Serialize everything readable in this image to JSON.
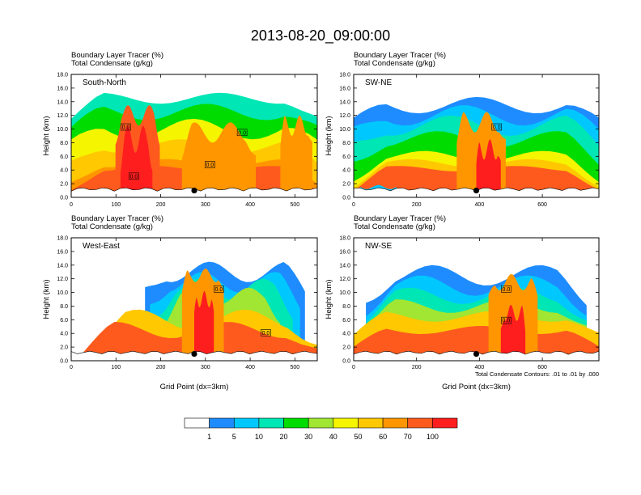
{
  "title": "2013-08-20_09:00:00",
  "footnote": "Total Condensate Contours: .01 to .01 by .000",
  "chart_data": {
    "type": "heatmap",
    "title": "2013-08-20_09:00:00",
    "colorbar": {
      "tick_labels": [
        "1",
        "5",
        "10",
        "20",
        "30",
        "40",
        "50",
        "60",
        "70",
        "100"
      ],
      "colors": [
        "#ffffff",
        "#1e8cff",
        "#00c8ff",
        "#00e6b4",
        "#00dc00",
        "#a0e632",
        "#f5f500",
        "#ffc800",
        "#ff9600",
        "#ff5a1e",
        "#ff1e1e"
      ]
    },
    "panels": [
      {
        "name": "South-North",
        "header_line1": "Boundary Layer Tracer   (%)",
        "header_line2": "Total Condensate   (g/kg)",
        "ylabel": "Height (km)",
        "xlabel": "",
        "y_ticks": [
          "0.0",
          "2.0",
          "4.0",
          "6.0",
          "8.0",
          "10.0",
          "12.0",
          "14.0",
          "16.0",
          "18.0"
        ],
        "x_ticks": [
          "0",
          "100",
          "200",
          "300",
          "400",
          "500"
        ],
        "x_tick_values": [
          0,
          100,
          200,
          300,
          400,
          500
        ],
        "x_range": [
          0,
          550
        ],
        "y_range": [
          0,
          18
        ],
        "marker_x": 275,
        "contour_labels": [
          {
            "text": "0.0",
            "x": 122,
            "y": 10.3
          },
          {
            "text": "0.0",
            "x": 140,
            "y": 3.1
          },
          {
            "text": "0.0",
            "x": 310,
            "y": 4.8
          },
          {
            "text": "0.0",
            "x": 382,
            "y": 9.5
          }
        ]
      },
      {
        "name": "SW-NE",
        "header_line1": "Boundary Layer Tracer   (%)",
        "header_line2": "Total Condensate   (g/kg)",
        "ylabel": "Height (km)",
        "xlabel": "",
        "y_ticks": [
          "0.0",
          "2.0",
          "4.0",
          "6.0",
          "8.0",
          "10.0",
          "12.0",
          "14.0",
          "16.0",
          "18.0"
        ],
        "x_ticks": [
          "0",
          "200",
          "400",
          "600"
        ],
        "x_tick_values": [
          0,
          200,
          400,
          600
        ],
        "x_range": [
          0,
          780
        ],
        "y_range": [
          0,
          18
        ],
        "marker_x": 390,
        "contour_labels": [
          {
            "text": "0.0",
            "x": 455,
            "y": 10.3
          }
        ]
      },
      {
        "name": "West-East",
        "header_line1": "Boundary Layer Tracer   (%)",
        "header_line2": "Total Condensate   (g/kg)",
        "ylabel": "Height (km)",
        "xlabel": "Grid Point (dx=3km)",
        "y_ticks": [
          "0.0",
          "2.0",
          "4.0",
          "6.0",
          "8.0",
          "10.0",
          "12.0",
          "14.0",
          "16.0",
          "18.0"
        ],
        "x_ticks": [
          "0",
          "100",
          "200",
          "300",
          "400",
          "500"
        ],
        "x_tick_values": [
          0,
          100,
          200,
          300,
          400,
          500
        ],
        "x_range": [
          0,
          550
        ],
        "y_range": [
          0,
          18
        ],
        "marker_x": 275,
        "contour_labels": [
          {
            "text": "0.0",
            "x": 330,
            "y": 10.5
          },
          {
            "text": "0.0",
            "x": 435,
            "y": 4.1
          }
        ]
      },
      {
        "name": "NW-SE",
        "header_line1": "Boundary Layer Tracer   (%)",
        "header_line2": "Total Condensate   (g/kg)",
        "ylabel": "Height (km)",
        "xlabel": "Grid Point (dx=3km)",
        "y_ticks": [
          "0.0",
          "2.0",
          "4.0",
          "6.0",
          "8.0",
          "10.0",
          "12.0",
          "14.0",
          "16.0",
          "18.0"
        ],
        "x_ticks": [
          "0",
          "200",
          "400",
          "600"
        ],
        "x_tick_values": [
          0,
          200,
          400,
          600
        ],
        "x_range": [
          0,
          780
        ],
        "y_range": [
          0,
          18
        ],
        "marker_x": 390,
        "contour_labels": [
          {
            "text": "0.0",
            "x": 485,
            "y": 10.5
          },
          {
            "text": "0.0",
            "x": 485,
            "y": 5.9
          }
        ]
      }
    ]
  }
}
